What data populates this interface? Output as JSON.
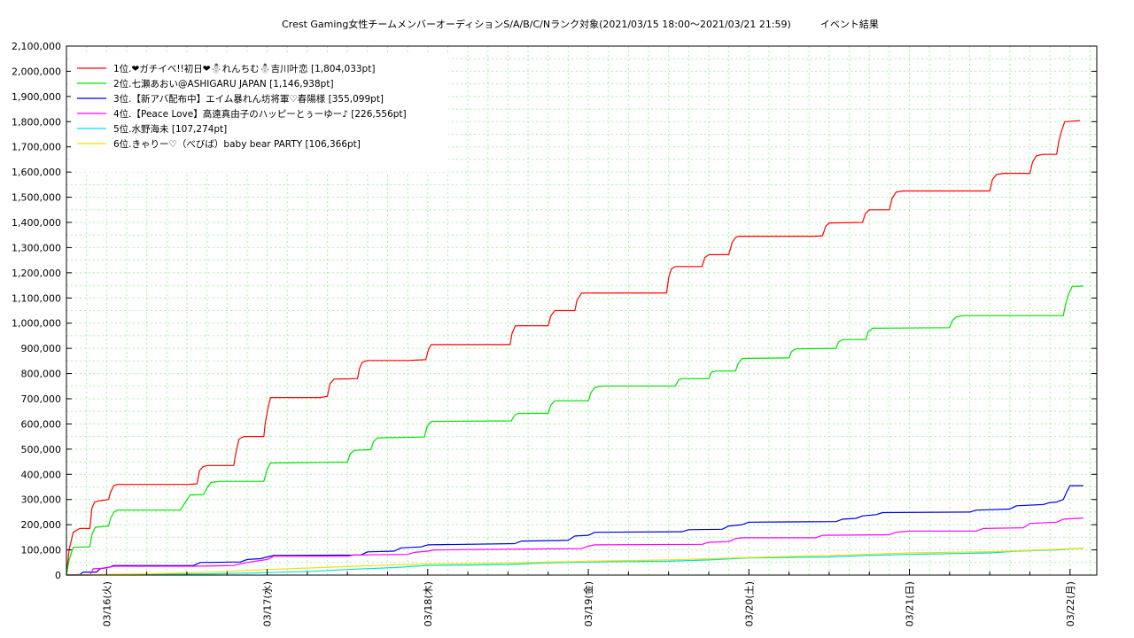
{
  "chart_data": {
    "type": "line",
    "title": "Crest Gaming女性チームメンバーオーディションS/A/B/C/Nランク対象(2021/03/15 18:00～2021/03/21 21:59)　　　イベント結果",
    "xlabel": "",
    "ylabel": "",
    "ylim": [
      0,
      2100000
    ],
    "yticks": [
      0,
      100000,
      200000,
      300000,
      400000,
      500000,
      600000,
      700000,
      800000,
      900000,
      1000000,
      1100000,
      1200000,
      1300000,
      1400000,
      1500000,
      1600000,
      1700000,
      1800000,
      1900000,
      2000000,
      2100000
    ],
    "ytick_labels": [
      "0",
      "100,000",
      "200,000",
      "300,000",
      "400,000",
      "500,000",
      "600,000",
      "700,000",
      "800,000",
      "900,000",
      "1,000,000",
      "1,100,000",
      "1,200,000",
      "1,300,000",
      "1,400,000",
      "1,500,000",
      "1,600,000",
      "1,700,000",
      "1,800,000",
      "1,900,000",
      "2,000,000",
      "2,100,000"
    ],
    "xlim": [
      18,
      172
    ],
    "xticks": [
      24,
      48,
      72,
      96,
      120,
      144,
      168
    ],
    "xtick_labels": [
      "03/16(火)",
      "03/17(水)",
      "03/18(木)",
      "03/19(金)",
      "03/20(土)",
      "03/21(日)",
      "03/22(月)"
    ],
    "grid": true,
    "legend_position": "top-left",
    "series": [
      {
        "name": "1位.❤ガチイベ!!初日❤⛄れんちむ⛄吉川叶恋 [1,804,033pt]",
        "color": "#ff0000",
        "points": [
          [
            18,
            0
          ],
          [
            18.4,
            100000
          ],
          [
            19,
            170000
          ],
          [
            20,
            185000
          ],
          [
            21,
            185000
          ],
          [
            21.5,
            185000
          ],
          [
            21.8,
            265000
          ],
          [
            22.2,
            290000
          ],
          [
            23,
            295000
          ],
          [
            24.3,
            300000
          ],
          [
            24.6,
            330000
          ],
          [
            25.1,
            355000
          ],
          [
            25.6,
            360000
          ],
          [
            36,
            360000
          ],
          [
            37.5,
            362000
          ],
          [
            37.9,
            415000
          ],
          [
            38.4,
            430000
          ],
          [
            39,
            435000
          ],
          [
            43,
            435000
          ],
          [
            43.4,
            495000
          ],
          [
            43.8,
            540000
          ],
          [
            44.5,
            550000
          ],
          [
            47.5,
            550000
          ],
          [
            47.7,
            600000
          ],
          [
            48.1,
            660000
          ],
          [
            48.5,
            705000
          ],
          [
            56,
            705000
          ],
          [
            57,
            710000
          ],
          [
            57.4,
            760000
          ],
          [
            58,
            778000
          ],
          [
            61.5,
            780000
          ],
          [
            61.8,
            820000
          ],
          [
            62.2,
            845000
          ],
          [
            63,
            852000
          ],
          [
            69,
            852000
          ],
          [
            71.7,
            855000
          ],
          [
            72.1,
            895000
          ],
          [
            72.5,
            915000
          ],
          [
            84.3,
            915000
          ],
          [
            84.6,
            960000
          ],
          [
            85.1,
            990000
          ],
          [
            90,
            990000
          ],
          [
            90.4,
            1030000
          ],
          [
            91,
            1050000
          ],
          [
            94,
            1050000
          ],
          [
            94.3,
            1090000
          ],
          [
            95,
            1120000
          ],
          [
            107.7,
            1120000
          ],
          [
            108,
            1180000
          ],
          [
            108.4,
            1215000
          ],
          [
            109,
            1225000
          ],
          [
            113,
            1225000
          ],
          [
            113.4,
            1260000
          ],
          [
            114,
            1272000
          ],
          [
            117,
            1272000
          ],
          [
            117.5,
            1320000
          ],
          [
            118,
            1340000
          ],
          [
            118.5,
            1345000
          ],
          [
            130,
            1345000
          ],
          [
            131,
            1347000
          ],
          [
            131.5,
            1385000
          ],
          [
            132,
            1398000
          ],
          [
            137,
            1400000
          ],
          [
            137.4,
            1435000
          ],
          [
            138,
            1450000
          ],
          [
            141,
            1450000
          ],
          [
            141.4,
            1495000
          ],
          [
            142,
            1520000
          ],
          [
            143,
            1525000
          ],
          [
            156,
            1525000
          ],
          [
            156.4,
            1570000
          ],
          [
            157,
            1590000
          ],
          [
            158,
            1595000
          ],
          [
            162,
            1595000
          ],
          [
            162.4,
            1640000
          ],
          [
            163,
            1665000
          ],
          [
            164,
            1670000
          ],
          [
            166,
            1670000
          ],
          [
            166.3,
            1720000
          ],
          [
            166.7,
            1760000
          ],
          [
            167.2,
            1800000
          ],
          [
            168.5,
            1802000
          ],
          [
            169.5,
            1804033
          ]
        ]
      },
      {
        "name": "2位.七瀬あおい@ASHIGARU JAPAN [1,146,938pt]",
        "color": "#00e000",
        "points": [
          [
            18,
            0
          ],
          [
            18.4,
            60000
          ],
          [
            19,
            110000
          ],
          [
            21,
            112000
          ],
          [
            21.5,
            112000
          ],
          [
            21.8,
            160000
          ],
          [
            22.3,
            190000
          ],
          [
            24.3,
            195000
          ],
          [
            24.6,
            225000
          ],
          [
            25.1,
            250000
          ],
          [
            25.6,
            258000
          ],
          [
            35,
            258000
          ],
          [
            35.8,
            290000
          ],
          [
            36.5,
            318000
          ],
          [
            38.5,
            320000
          ],
          [
            39,
            345000
          ],
          [
            39.6,
            368000
          ],
          [
            41,
            372000
          ],
          [
            47.5,
            372000
          ],
          [
            48,
            420000
          ],
          [
            48.5,
            445000
          ],
          [
            60,
            448000
          ],
          [
            60.4,
            480000
          ],
          [
            61,
            495000
          ],
          [
            63.5,
            498000
          ],
          [
            63.9,
            530000
          ],
          [
            64.5,
            545000
          ],
          [
            71.5,
            548000
          ],
          [
            71.9,
            590000
          ],
          [
            72.5,
            610000
          ],
          [
            84.5,
            612000
          ],
          [
            85,
            635000
          ],
          [
            85.5,
            642000
          ],
          [
            90,
            642000
          ],
          [
            90.4,
            675000
          ],
          [
            91,
            692000
          ],
          [
            96,
            692000
          ],
          [
            96.4,
            725000
          ],
          [
            97,
            745000
          ],
          [
            98,
            750000
          ],
          [
            109,
            750000
          ],
          [
            109.5,
            775000
          ],
          [
            110,
            780000
          ],
          [
            114,
            780000
          ],
          [
            114.4,
            805000
          ],
          [
            115,
            810000
          ],
          [
            118,
            810000
          ],
          [
            118.4,
            840000
          ],
          [
            119,
            860000
          ],
          [
            126,
            862000
          ],
          [
            126.4,
            888000
          ],
          [
            127,
            898000
          ],
          [
            133,
            900000
          ],
          [
            133.4,
            925000
          ],
          [
            134,
            935000
          ],
          [
            137.5,
            935000
          ],
          [
            137.8,
            965000
          ],
          [
            138.5,
            980000
          ],
          [
            150,
            982000
          ],
          [
            150.4,
            1010000
          ],
          [
            151,
            1025000
          ],
          [
            152,
            1030000
          ],
          [
            167,
            1030000
          ],
          [
            167.3,
            1070000
          ],
          [
            167.7,
            1110000
          ],
          [
            168.3,
            1145000
          ],
          [
            170,
            1146938
          ]
        ]
      },
      {
        "name": "3位.【新アバ配布中】エイム暴れん坊将軍♡春陽様 [355,099pt]",
        "color": "#0000e0",
        "points": [
          [
            18,
            0
          ],
          [
            20,
            2000
          ],
          [
            20.5,
            12000
          ],
          [
            22.5,
            12000
          ],
          [
            23,
            25000
          ],
          [
            24.5,
            32000
          ],
          [
            25,
            38000
          ],
          [
            37,
            38000
          ],
          [
            38,
            50000
          ],
          [
            44,
            52000
          ],
          [
            45,
            62000
          ],
          [
            47,
            65000
          ],
          [
            48,
            72000
          ],
          [
            49,
            78000
          ],
          [
            62,
            80000
          ],
          [
            63,
            92000
          ],
          [
            67,
            95000
          ],
          [
            68,
            108000
          ],
          [
            71,
            112000
          ],
          [
            72,
            120000
          ],
          [
            85,
            125000
          ],
          [
            86,
            135000
          ],
          [
            93,
            138000
          ],
          [
            94,
            155000
          ],
          [
            96,
            158000
          ],
          [
            97,
            170000
          ],
          [
            110,
            172000
          ],
          [
            111,
            180000
          ],
          [
            116,
            182000
          ],
          [
            117,
            195000
          ],
          [
            119,
            200000
          ],
          [
            120,
            210000
          ],
          [
            133,
            212000
          ],
          [
            134,
            222000
          ],
          [
            136,
            225000
          ],
          [
            137,
            235000
          ],
          [
            139,
            240000
          ],
          [
            140,
            248000
          ],
          [
            153,
            250000
          ],
          [
            154,
            258000
          ],
          [
            159,
            262000
          ],
          [
            160,
            275000
          ],
          [
            164,
            280000
          ],
          [
            165,
            288000
          ],
          [
            166,
            290000
          ],
          [
            167,
            300000
          ],
          [
            167.5,
            330000
          ],
          [
            168,
            355000
          ],
          [
            170,
            355099
          ]
        ]
      },
      {
        "name": "4位.【Peace Love】高遠真由子のハッピーとぅーゆー♪ [226,556pt]",
        "color": "#ff00ff",
        "points": [
          [
            18,
            0
          ],
          [
            21.5,
            0
          ],
          [
            22,
            25000
          ],
          [
            24,
            28000
          ],
          [
            25,
            35000
          ],
          [
            37,
            35000
          ],
          [
            43,
            38000
          ],
          [
            44,
            45000
          ],
          [
            45,
            50000
          ],
          [
            48,
            62000
          ],
          [
            49,
            75000
          ],
          [
            60,
            75000
          ],
          [
            61,
            80000
          ],
          [
            69,
            82000
          ],
          [
            70,
            90000
          ],
          [
            72,
            95000
          ],
          [
            73,
            100000
          ],
          [
            95,
            105000
          ],
          [
            96,
            115000
          ],
          [
            97,
            120000
          ],
          [
            113,
            122000
          ],
          [
            114,
            130000
          ],
          [
            117,
            133000
          ],
          [
            118,
            145000
          ],
          [
            119,
            148000
          ],
          [
            130,
            148000
          ],
          [
            131,
            158000
          ],
          [
            141,
            160000
          ],
          [
            142,
            170000
          ],
          [
            144,
            175000
          ],
          [
            154,
            175000
          ],
          [
            155,
            185000
          ],
          [
            161,
            188000
          ],
          [
            162,
            205000
          ],
          [
            166,
            210000
          ],
          [
            167,
            222000
          ],
          [
            170,
            226556
          ]
        ]
      },
      {
        "name": "5位.水野海未 [107,274pt]",
        "color": "#00e0e0",
        "points": [
          [
            18,
            0
          ],
          [
            40,
            5000
          ],
          [
            48,
            10000
          ],
          [
            55,
            15000
          ],
          [
            60,
            22000
          ],
          [
            67,
            30000
          ],
          [
            72,
            38000
          ],
          [
            84,
            42000
          ],
          [
            89,
            48000
          ],
          [
            96,
            52000
          ],
          [
            108,
            55000
          ],
          [
            114,
            60000
          ],
          [
            120,
            68000
          ],
          [
            132,
            72000
          ],
          [
            138,
            78000
          ],
          [
            144,
            82000
          ],
          [
            156,
            88000
          ],
          [
            160,
            95000
          ],
          [
            166,
            100000
          ],
          [
            170,
            107274
          ]
        ]
      },
      {
        "name": "6位.きゃりー♡（べびば）baby bear PARTY [106,366pt]",
        "color": "#f0e000",
        "points": [
          [
            18,
            0
          ],
          [
            30,
            5000
          ],
          [
            40,
            12000
          ],
          [
            48,
            22000
          ],
          [
            56,
            30000
          ],
          [
            64,
            38000
          ],
          [
            72,
            44000
          ],
          [
            84,
            48000
          ],
          [
            96,
            55000
          ],
          [
            108,
            60000
          ],
          [
            120,
            70000
          ],
          [
            132,
            78000
          ],
          [
            144,
            88000
          ],
          [
            156,
            93000
          ],
          [
            162,
            98000
          ],
          [
            166,
            102000
          ],
          [
            170,
            106366
          ]
        ]
      }
    ]
  }
}
